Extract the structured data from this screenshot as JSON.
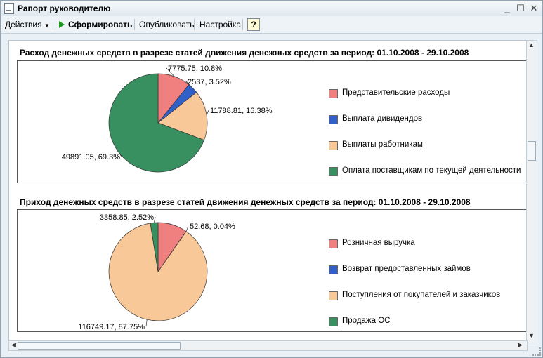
{
  "window": {
    "title": "Рапорт руководителю",
    "minimize": "_",
    "maximize": "☐",
    "close": "✕"
  },
  "toolbar": {
    "actions": "Действия",
    "generate": "Сформировать",
    "publish": "Опубликовать",
    "settings": "Настройка",
    "help": "?"
  },
  "chart_data": [
    {
      "type": "pie",
      "title": "Расход денежных средств в разрезе статей движения денежных средств за период: 01.10.2008 - 29.10.2008",
      "slices": [
        {
          "name": "Представительские расходы",
          "value": 7775.75,
          "percent": 10.8,
          "label": "7775.75, 10.8%",
          "color": "#f08080"
        },
        {
          "name": "Выплата дивидендов",
          "value": 2537,
          "percent": 3.52,
          "label": "2537, 3.52%",
          "color": "#3060c8"
        },
        {
          "name": "Выплаты работникам",
          "value": 11788.81,
          "percent": 16.38,
          "label": "11788.81, 16.38%",
          "color": "#f8c898"
        },
        {
          "name": "Оплата поставщикам по текущей деятельности",
          "value": 49891.05,
          "percent": 69.3,
          "label": "49891.05, 69.3%",
          "color": "#389060"
        }
      ],
      "legend_position": "right"
    },
    {
      "type": "pie",
      "title": "Приход денежных средств в разрезе статей движения денежных средств за период: 01.10.2008 - 29.10.2008",
      "slices": [
        {
          "name": "Розничная выручка",
          "value": 12920,
          "percent": 9.69,
          "label": "",
          "color": "#f08080"
        },
        {
          "name": "Возврат предоставленных займов",
          "value": 52.68,
          "percent": 0.04,
          "label": "52.68, 0.04%",
          "color": "#3060c8"
        },
        {
          "name": "Поступления от покупателей и заказчиков",
          "value": 116749.17,
          "percent": 87.75,
          "label": "116749.17, 87.75%",
          "color": "#f8c898"
        },
        {
          "name": "Продажа ОС",
          "value": 3358.85,
          "percent": 2.52,
          "label": "3358.85, 2.52%",
          "color": "#389060"
        }
      ],
      "legend_position": "right"
    }
  ]
}
